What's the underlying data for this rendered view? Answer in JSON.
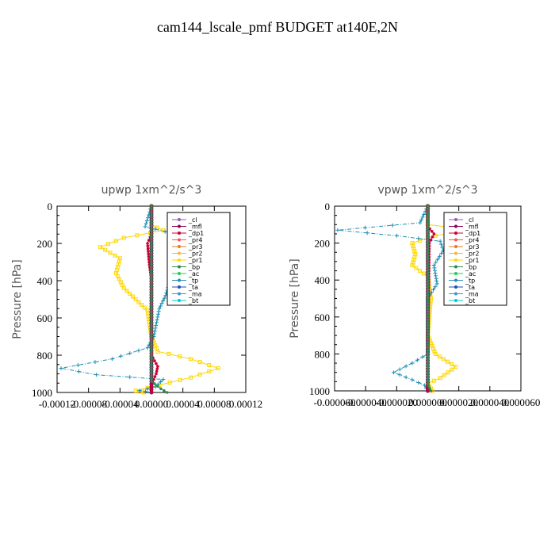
{
  "title": "cam144_lscale_pmf  BUDGET at140E,2N",
  "colors": {
    "_cl": "#9b59b6",
    "_mfl": "#8b0057",
    "_dp1": "#cc0033",
    "_pr4": "#ff5555",
    "_pr3": "#e67e22",
    "_pr2": "#ffb347",
    "_pr1": "#ffd700",
    "_bp": "#2e8b57",
    "_ac": "#22cc55",
    "_tp": "#1f8fb5",
    "_ta": "#1f4fb5",
    "_ma": "#3399dd",
    "_bt": "#00cccc",
    "frame": "#000000"
  },
  "chart_data": [
    {
      "type": "line",
      "title": "upwp   1xm^2/s^3",
      "ylabel": "Pressure [hPa]",
      "ylim": [
        1000,
        0
      ],
      "yticks": [
        0,
        200,
        400,
        600,
        800,
        1000
      ],
      "xlim": [
        -0.00012,
        0.00012
      ],
      "xtick_labels": [
        "-0.00012",
        "-0.00008",
        "-0.00004",
        "0.00000",
        "0.00004",
        "0.00008",
        "0.00012"
      ],
      "legend_entries": [
        "_cl",
        "_mfl",
        "_dp1",
        "_pr4",
        "_pr3",
        "_pr2",
        "_pr1",
        "_bp",
        "_ac",
        "_tp",
        "_ta",
        "_ma",
        "_bt"
      ],
      "series": [
        {
          "name": "_pr1",
          "points": [
            [
              0,
              0
            ],
            [
              0,
              100
            ],
            [
              1.5e-05,
              130
            ],
            [
              -3.5e-05,
              170
            ],
            [
              -6.5e-05,
              220
            ],
            [
              -4e-05,
              280
            ],
            [
              -4.5e-05,
              360
            ],
            [
              -3.5e-05,
              440
            ],
            [
              -2e-05,
              500
            ],
            [
              -5e-06,
              560
            ],
            [
              0,
              700
            ],
            [
              8e-06,
              780
            ],
            [
              5e-05,
              820
            ],
            [
              8.5e-05,
              870
            ],
            [
              5e-05,
              920
            ],
            [
              1e-05,
              960
            ],
            [
              -2e-05,
              990
            ],
            [
              -1e-05,
              1000
            ]
          ]
        },
        {
          "name": "_tp",
          "points": [
            [
              0,
              0
            ],
            [
              -8e-06,
              110
            ],
            [
              3e-05,
              150
            ],
            [
              4.5e-05,
              200
            ],
            [
              3.5e-05,
              280
            ],
            [
              2.5e-05,
              380
            ],
            [
              1.8e-05,
              480
            ],
            [
              1e-05,
              550
            ],
            [
              3e-06,
              700
            ],
            [
              -5e-06,
              760
            ],
            [
              -5e-05,
              820
            ],
            [
              -0.000115,
              870
            ],
            [
              -7e-05,
              905
            ],
            [
              1.5e-05,
              930
            ],
            [
              5e-06,
              970
            ],
            [
              -1.5e-05,
              990
            ],
            [
              0,
              1000
            ]
          ]
        },
        {
          "name": "_mfl",
          "points": [
            [
              0,
              0
            ],
            [
              0,
              1000
            ]
          ]
        },
        {
          "name": "_dp1",
          "points": [
            [
              0,
              0
            ],
            [
              0,
              150
            ],
            [
              -5e-06,
              200
            ],
            [
              -3e-06,
              300
            ],
            [
              0,
              400
            ],
            [
              0,
              800
            ],
            [
              8e-06,
              860
            ],
            [
              6e-06,
              900
            ],
            [
              0,
              960
            ],
            [
              0,
              1000
            ]
          ]
        },
        {
          "name": "_bp",
          "points": [
            [
              0,
              0
            ],
            [
              0,
              940
            ],
            [
              1.2e-05,
              980
            ],
            [
              2e-05,
              1000
            ]
          ]
        }
      ]
    },
    {
      "type": "line",
      "title": "vpwp   1xm^2/s^3",
      "ylabel": "Pressure [hPa]",
      "ylim": [
        1000,
        0
      ],
      "yticks": [
        0,
        200,
        400,
        600,
        800,
        1000
      ],
      "xlim": [
        -6e-05,
        6e-05
      ],
      "xtick_labels": [
        "-0.000060",
        "-0.000040",
        "-0.000020",
        "0.000000",
        "0.000020",
        "0.000040",
        "0.000060"
      ],
      "legend_entries": [
        "_cl",
        "_mfl",
        "_dp1",
        "_pr4",
        "_pr3",
        "_pr2",
        "_pr1",
        "_bp",
        "_ac",
        "_tp",
        "_ta",
        "_ma",
        "_bt"
      ],
      "series": [
        {
          "name": "_pr1",
          "points": [
            [
              0,
              0
            ],
            [
              0,
              100
            ],
            [
              3e-05,
              130
            ],
            [
              5e-06,
              160
            ],
            [
              -1e-05,
              200
            ],
            [
              -8e-06,
              260
            ],
            [
              -1e-05,
              320
            ],
            [
              0,
              380
            ],
            [
              2e-06,
              500
            ],
            [
              0,
              700
            ],
            [
              5e-06,
              800
            ],
            [
              1.8e-05,
              870
            ],
            [
              8e-06,
              930
            ],
            [
              0,
              960
            ],
            [
              3e-06,
              1000
            ]
          ]
        },
        {
          "name": "_tp",
          "points": [
            [
              0,
              0
            ],
            [
              -5e-06,
              90
            ],
            [
              -5.8e-05,
              130
            ],
            [
              -2e-05,
              160
            ],
            [
              8e-06,
              190
            ],
            [
              1e-05,
              240
            ],
            [
              4e-06,
              320
            ],
            [
              6e-06,
              420
            ],
            [
              0,
              500
            ],
            [
              0,
              800
            ],
            [
              -1e-05,
              850
            ],
            [
              -2.2e-05,
              900
            ],
            [
              -1e-05,
              940
            ],
            [
              -2e-06,
              970
            ],
            [
              0,
              1000
            ]
          ]
        },
        {
          "name": "_mfl",
          "points": [
            [
              0,
              0
            ],
            [
              0,
              1000
            ]
          ]
        },
        {
          "name": "_dp1",
          "points": [
            [
              0,
              0
            ],
            [
              0,
              110
            ],
            [
              4e-06,
              150
            ],
            [
              1e-06,
              200
            ],
            [
              0,
              1000
            ]
          ]
        },
        {
          "name": "_bp",
          "points": [
            [
              0,
              0
            ],
            [
              0,
              960
            ],
            [
              2e-06,
              1000
            ]
          ]
        }
      ]
    }
  ]
}
